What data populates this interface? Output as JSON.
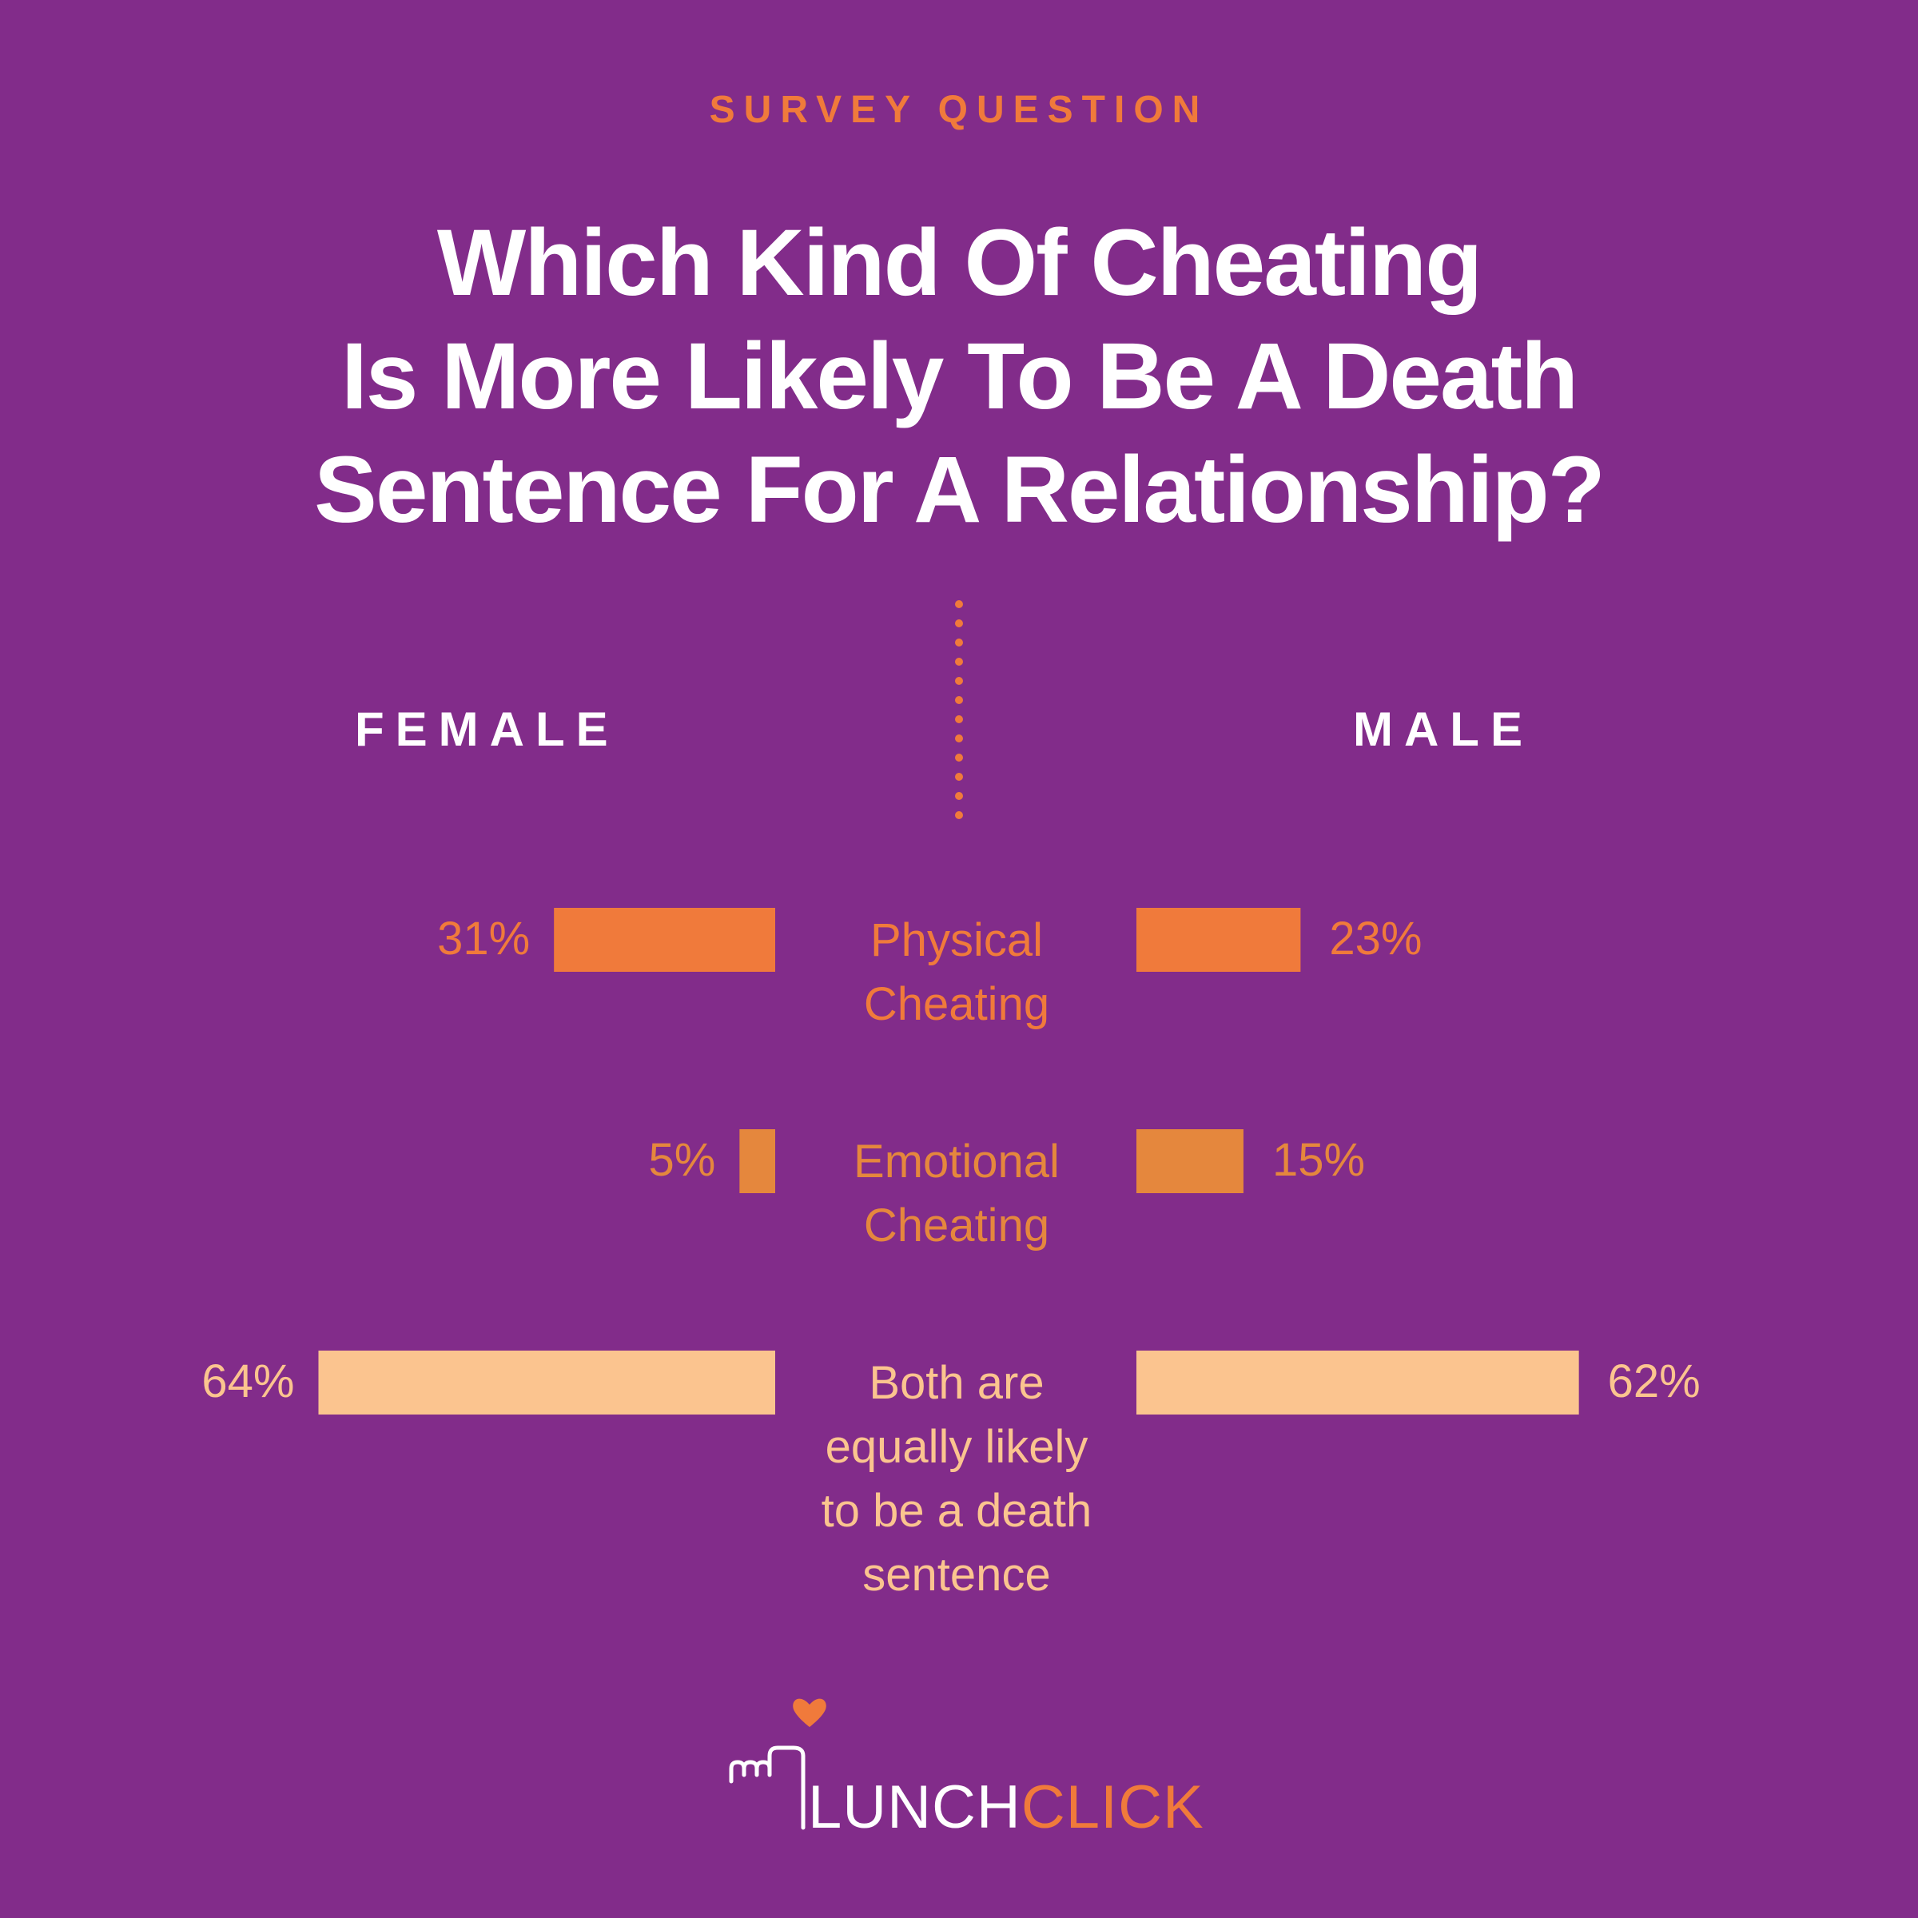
{
  "header": {
    "eyebrow": "SURVEY QUESTION",
    "title_lines": [
      "Which Kind Of Cheating",
      "Is More Likely To Be A Death",
      "Sentence For A Relationship?"
    ]
  },
  "chart_data": {
    "type": "bar",
    "orientation": "horizontal-butterfly",
    "series": [
      {
        "name": "FEMALE",
        "values": [
          31,
          5,
          64
        ]
      },
      {
        "name": "MALE",
        "values": [
          23,
          15,
          62
        ]
      }
    ],
    "categories": [
      {
        "label_lines": [
          "Physical",
          "Cheating"
        ],
        "color": "#F07A3B"
      },
      {
        "label_lines": [
          "Emotional",
          "Cheating"
        ],
        "color": "#E5873D"
      },
      {
        "label_lines": [
          "Both are",
          "equally likely",
          "to be a death",
          "sentence"
        ],
        "color": "#FBC48F"
      }
    ],
    "value_labels": {
      "female": [
        "31%",
        "5%",
        "64%"
      ],
      "male": [
        "23%",
        "15%",
        "62%"
      ]
    },
    "xlim": [
      0,
      100
    ],
    "unit": "%"
  },
  "colors": {
    "background": "#822C8A",
    "accent": "#F07A3B",
    "emotional_bar": "#E5873D",
    "light_bar": "#FBC48F",
    "text_white": "#FFFFFF"
  },
  "brand": {
    "logo_text_main": "LUNCH",
    "logo_text_accent": "CLICK",
    "logo_icon": "heart-icon"
  }
}
